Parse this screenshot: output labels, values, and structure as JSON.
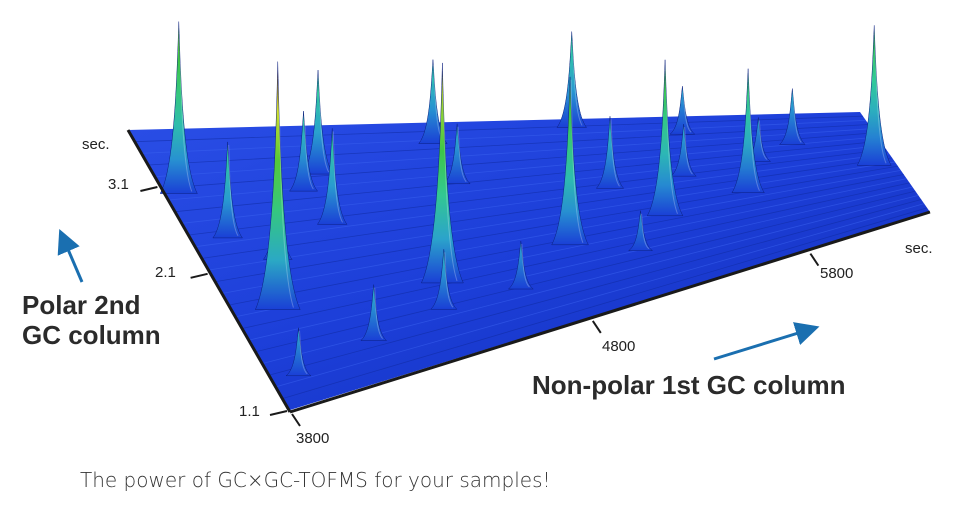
{
  "chart_data": {
    "type": "surface-3d",
    "x_axis": {
      "label": "Non-polar 1st GC column",
      "unit": "sec.",
      "ticks": [
        3800,
        4800,
        5800
      ],
      "range": [
        3800,
        6300
      ]
    },
    "y_axis": {
      "label": "Polar 2nd GC column",
      "unit": "sec.",
      "ticks": [
        1.1,
        2.1,
        3.1
      ],
      "range": [
        1.1,
        3.6
      ]
    },
    "z_axis": {
      "label": "",
      "range": [
        0,
        100
      ]
    },
    "colormap": [
      "#1a3fd6",
      "#2a9fd0",
      "#30c9a0",
      "#3fc43a",
      "#d6e02a",
      "#6e2a10"
    ],
    "peaks": [
      {
        "x": 3840,
        "y": 3.0,
        "intensity": 43
      },
      {
        "x": 3930,
        "y": 1.77,
        "intensity": 62
      },
      {
        "x": 4440,
        "y": 1.71,
        "intensity": 55
      },
      {
        "x": 4890,
        "y": 1.81,
        "intensity": 42
      },
      {
        "x": 5330,
        "y": 1.92,
        "intensity": 39
      },
      {
        "x": 5710,
        "y": 2.02,
        "intensity": 31
      },
      {
        "x": 6220,
        "y": 2.13,
        "intensity": 35
      },
      {
        "x": 5180,
        "y": 3.48,
        "intensity": 24
      },
      {
        "x": 4650,
        "y": 3.35,
        "intensity": 21
      },
      {
        "x": 4270,
        "y": 3.1,
        "intensity": 26
      },
      {
        "x": 3906,
        "y": 2.45,
        "intensity": 24
      },
      {
        "x": 4013,
        "y": 2.13,
        "intensity": 22
      },
      {
        "x": 4226,
        "y": 2.45,
        "intensity": 24
      },
      {
        "x": 4651,
        "y": 1.51,
        "intensity": 12
      },
      {
        "x": 5182,
        "y": 2.45,
        "intensity": 18
      },
      {
        "x": 5826,
        "y": 2.62,
        "intensity": 11
      },
      {
        "x": 5984,
        "y": 2.94,
        "intensity": 14
      },
      {
        "x": 4200,
        "y": 2.9,
        "intensity": 20
      },
      {
        "x": 4650,
        "y": 2.8,
        "intensity": 15
      },
      {
        "x": 5600,
        "y": 3.3,
        "intensity": 12
      },
      {
        "x": 4400,
        "y": 1.5,
        "intensity": 15
      },
      {
        "x": 5150,
        "y": 1.6,
        "intensity": 10
      },
      {
        "x": 4150,
        "y": 1.4,
        "intensity": 14
      },
      {
        "x": 3880,
        "y": 1.3,
        "intensity": 12
      },
      {
        "x": 5500,
        "y": 2.5,
        "intensity": 13
      }
    ]
  },
  "labels": {
    "y_unit": "sec.",
    "x_unit": "sec.",
    "y_ticks": [
      "1.1",
      "2.1",
      "3.1"
    ],
    "x_ticks": [
      "3800",
      "4800",
      "5800"
    ],
    "y_title_line1": "Polar 2nd",
    "y_title_line2": "GC column",
    "x_title": "Non-polar 1st GC column",
    "caption": "The power of GC×GC-TOFMS for your samples!"
  },
  "colors": {
    "arrow": "#1a6fb0",
    "axis": "#1a1a1a",
    "surface": "#1c3ed8"
  }
}
